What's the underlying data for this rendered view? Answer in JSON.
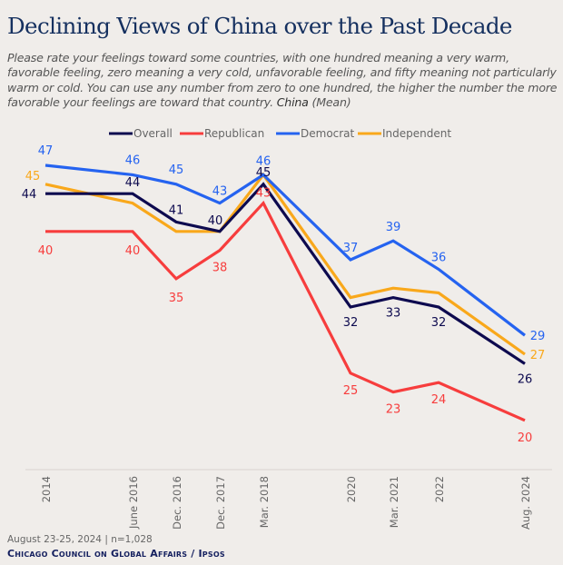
{
  "title": "Declining Views of China over the Past Decade",
  "subtitle": "Please rate your feelings toward some countries, with one hundred meaning a very warm, favorable feeling, zero meaning a very cold, unfavorable feeling, and fifty meaning not particularly warm or cold. You can use any number from zero to one hundred, the higher the number the more favorable your feelings are toward that country.",
  "subtitle_country": "China",
  "subtitle_measure": "(Mean)",
  "footer": {
    "fieldwork": "August 23-25, 2024 | n=1,028",
    "source": "Chicago Council on Global Affairs / Ipsos"
  },
  "chart_data": {
    "type": "line",
    "title": "Declining Views of China over the Past Decade",
    "categories": [
      "2014",
      "June 2016",
      "Dec. 2016",
      "Dec. 2017",
      "Mar. 2018",
      "2020",
      "Mar. 2021",
      "2022",
      "Aug. 2024"
    ],
    "series": [
      {
        "name": "Overall",
        "color": "#0d0a4f",
        "values": [
          44,
          44,
          41,
          40,
          45,
          32,
          33,
          32,
          26
        ],
        "labeled": [
          true,
          true,
          true,
          true,
          true,
          true,
          true,
          true,
          true
        ]
      },
      {
        "name": "Republican",
        "color": "#f73d3d",
        "values": [
          40,
          40,
          35,
          38,
          43,
          25,
          23,
          24,
          20
        ],
        "labeled": [
          true,
          true,
          true,
          true,
          true,
          true,
          true,
          true,
          true
        ]
      },
      {
        "name": "Democrat",
        "color": "#2563f0",
        "values": [
          47,
          46,
          45,
          43,
          46,
          37,
          39,
          36,
          29
        ],
        "labeled": [
          true,
          true,
          true,
          true,
          true,
          true,
          true,
          true,
          true
        ]
      },
      {
        "name": "Independent",
        "color": "#f9a81b",
        "values": [
          45,
          43,
          40,
          40,
          46,
          33,
          34,
          33.5,
          27
        ],
        "labeled": [
          true,
          false,
          false,
          false,
          false,
          false,
          false,
          false,
          true
        ]
      }
    ],
    "legend": "top-center",
    "grid": false
  }
}
